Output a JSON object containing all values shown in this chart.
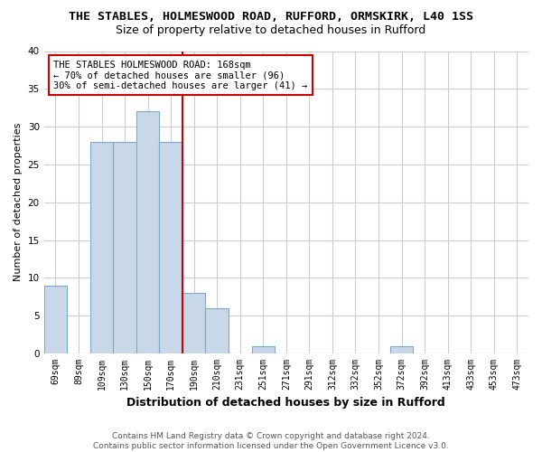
{
  "title": "THE STABLES, HOLMESWOOD ROAD, RUFFORD, ORMSKIRK, L40 1SS",
  "subtitle": "Size of property relative to detached houses in Rufford",
  "xlabel": "Distribution of detached houses by size in Rufford",
  "ylabel": "Number of detached properties",
  "footer_line1": "Contains HM Land Registry data © Crown copyright and database right 2024.",
  "footer_line2": "Contains public sector information licensed under the Open Government Licence v3.0.",
  "bins": [
    "69sqm",
    "89sqm",
    "109sqm",
    "130sqm",
    "150sqm",
    "170sqm",
    "190sqm",
    "210sqm",
    "231sqm",
    "251sqm",
    "271sqm",
    "291sqm",
    "312sqm",
    "332sqm",
    "352sqm",
    "372sqm",
    "392sqm",
    "413sqm",
    "433sqm",
    "453sqm",
    "473sqm"
  ],
  "values": [
    9,
    0,
    28,
    28,
    32,
    28,
    8,
    6,
    0,
    1,
    0,
    0,
    0,
    0,
    0,
    1,
    0,
    0,
    0,
    0,
    0
  ],
  "bar_color": "#c8d8e8",
  "bar_edgecolor": "#7aaac8",
  "vline_color": "#cc0000",
  "annotation_line1": "THE STABLES HOLMESWOOD ROAD: 168sqm",
  "annotation_line2": "← 70% of detached houses are smaller (96)",
  "annotation_line3": "30% of semi-detached houses are larger (41) →",
  "annotation_box_color": "#ffffff",
  "annotation_box_edgecolor": "#cc0000",
  "ylim": [
    0,
    40
  ],
  "yticks": [
    0,
    5,
    10,
    15,
    20,
    25,
    30,
    35,
    40
  ],
  "grid_color": "#cccccc",
  "background_color": "#ffffff",
  "title_fontsize": 9.5,
  "subtitle_fontsize": 9,
  "xlabel_fontsize": 9,
  "ylabel_fontsize": 8,
  "tick_fontsize": 7,
  "annotation_fontsize": 7.5,
  "footer_fontsize": 6.5
}
